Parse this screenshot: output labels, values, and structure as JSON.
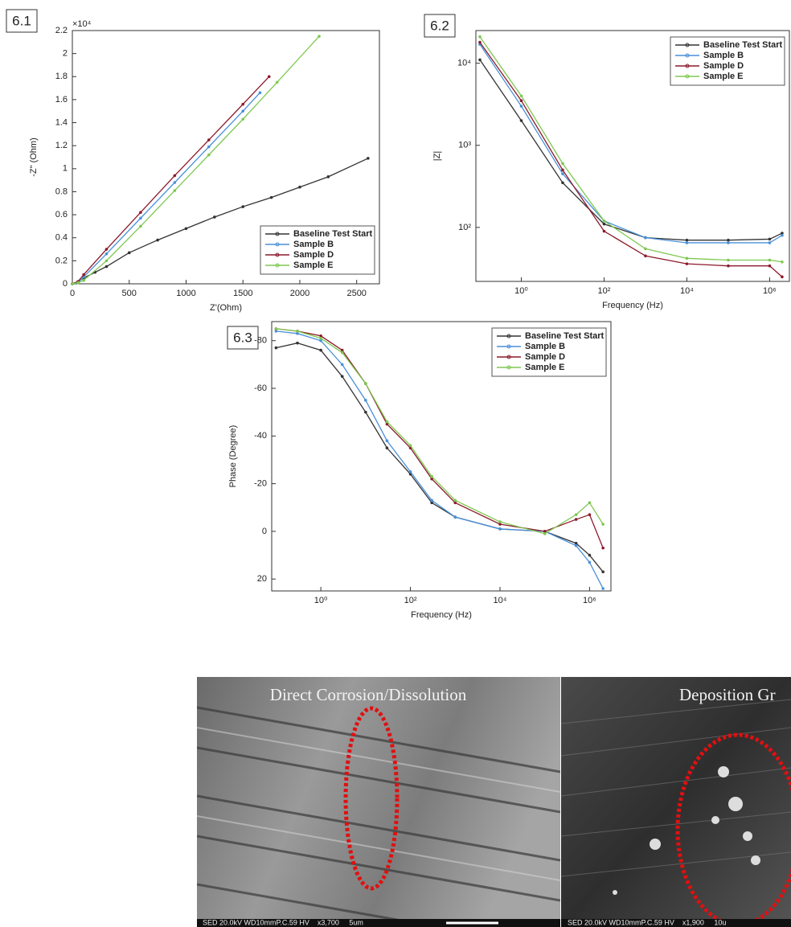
{
  "chart_data": [
    {
      "type": "line",
      "label": "6.1",
      "x_label": "Z'(Ohm)",
      "y_label": "-Z\" (Ohm)",
      "y_multiplier": "×10⁴",
      "xscale": "linear",
      "yscale": "linear",
      "xlim": [
        0,
        2700
      ],
      "ylim": [
        0,
        22000
      ],
      "xticks": [
        0,
        500,
        1000,
        1500,
        2000,
        2500
      ],
      "yticks": [
        0,
        {
          "value": 2000,
          "label": "0.2"
        },
        {
          "value": 4000,
          "label": "0.4"
        },
        {
          "value": 6000,
          "label": "0.6"
        },
        {
          "value": 8000,
          "label": "0.8"
        },
        {
          "value": 10000,
          "label": "1"
        },
        {
          "value": 12000,
          "label": "1.2"
        },
        {
          "value": 14000,
          "label": "1.4"
        },
        {
          "value": 16000,
          "label": "1.6"
        },
        {
          "value": 18000,
          "label": "1.8"
        },
        {
          "value": 20000,
          "label": "2"
        },
        {
          "value": 22000,
          "label": "2.2"
        }
      ],
      "legend": "lower right",
      "series": [
        {
          "name": "Baseline Test Start",
          "color": "#333333",
          "x": [
            0,
            50,
            100,
            200,
            300,
            500,
            750,
            1000,
            1250,
            1500,
            1750,
            2000,
            2250,
            2600
          ],
          "values": [
            0,
            200,
            500,
            1000,
            1500,
            2700,
            3800,
            4800,
            5800,
            6700,
            7500,
            8400,
            9300,
            10900
          ]
        },
        {
          "name": "Sample B",
          "color": "#4a90d9",
          "x": [
            0,
            50,
            100,
            300,
            600,
            900,
            1200,
            1500,
            1650
          ],
          "values": [
            0,
            100,
            600,
            2600,
            5700,
            8800,
            11900,
            15000,
            16600
          ]
        },
        {
          "name": "Sample D",
          "color": "#8b1a2b",
          "x": [
            0,
            50,
            100,
            300,
            600,
            900,
            1200,
            1500,
            1730
          ],
          "values": [
            0,
            200,
            800,
            3000,
            6200,
            9400,
            12500,
            15600,
            18000
          ]
        },
        {
          "name": "Sample E",
          "color": "#7ec850",
          "x": [
            0,
            50,
            100,
            300,
            600,
            900,
            1200,
            1500,
            1800,
            2170
          ],
          "values": [
            0,
            100,
            300,
            2000,
            5000,
            8100,
            11200,
            14300,
            17500,
            21500
          ]
        }
      ]
    },
    {
      "type": "line",
      "label": "6.2",
      "x_label": "Frequency (Hz)",
      "y_label": "|Z|",
      "xscale": "log",
      "yscale": "log",
      "xlim": [
        0.08,
        3000000
      ],
      "ylim": [
        22,
        25000
      ],
      "xticks": [
        {
          "value": 1,
          "label": "10⁰"
        },
        {
          "value": 100,
          "label": "10²"
        },
        {
          "value": 10000,
          "label": "10⁴"
        },
        {
          "value": 1000000,
          "label": "10⁶"
        }
      ],
      "yticks": [
        {
          "value": 100,
          "label": "10²"
        },
        {
          "value": 1000,
          "label": "10³"
        },
        {
          "value": 10000,
          "label": "10⁴"
        }
      ],
      "legend": "upper right",
      "x": [
        0.1,
        1,
        10,
        100,
        1000,
        10000,
        100000,
        1000000,
        2000000
      ],
      "series": [
        {
          "name": "Baseline Test Start",
          "color": "#333333",
          "values": [
            11000,
            2000,
            350,
            110,
            75,
            70,
            70,
            72,
            85
          ]
        },
        {
          "name": "Sample B",
          "color": "#4a90d9",
          "values": [
            17000,
            3000,
            450,
            120,
            75,
            65,
            65,
            65,
            80
          ]
        },
        {
          "name": "Sample D",
          "color": "#8b1a2b",
          "values": [
            18000,
            3500,
            500,
            90,
            45,
            36,
            34,
            34,
            25
          ]
        },
        {
          "name": "Sample E",
          "color": "#7ec850",
          "values": [
            21000,
            4000,
            600,
            120,
            55,
            42,
            40,
            40,
            38
          ]
        }
      ]
    },
    {
      "type": "line",
      "label": "6.3",
      "x_label": "Frequency (Hz)",
      "y_label": "Phase (Degree)",
      "xscale": "log",
      "yscale": "linear",
      "xlim": [
        0.08,
        3000000
      ],
      "ylim": [
        25,
        -88
      ],
      "xticks": [
        {
          "value": 1,
          "label": "10⁰"
        },
        {
          "value": 100,
          "label": "10²"
        },
        {
          "value": 10000,
          "label": "10⁴"
        },
        {
          "value": 1000000,
          "label": "10⁶"
        }
      ],
      "yticks": [
        -80,
        -60,
        -40,
        -20,
        0,
        20
      ],
      "legend": "upper right",
      "x": [
        0.1,
        0.3,
        1,
        3,
        10,
        30,
        100,
        300,
        1000,
        10000,
        100000,
        500000,
        1000000,
        2000000
      ],
      "series": [
        {
          "name": "Baseline Test Start",
          "color": "#333333",
          "values": [
            -77,
            -79,
            -76,
            -65,
            -50,
            -35,
            -24,
            -12,
            -6,
            -1,
            0,
            5,
            10,
            17
          ]
        },
        {
          "name": "Sample B",
          "color": "#4a90d9",
          "values": [
            -84,
            -83,
            -80,
            -70,
            -55,
            -38,
            -25,
            -13,
            -6,
            -1,
            0,
            6,
            13,
            24
          ]
        },
        {
          "name": "Sample D",
          "color": "#8b1a2b",
          "values": [
            -85,
            -84,
            -82,
            -76,
            -62,
            -45,
            -35,
            -22,
            -12,
            -3,
            0,
            -5,
            -7,
            7
          ]
        },
        {
          "name": "Sample E",
          "color": "#7ec850",
          "values": [
            -85,
            -84,
            -81,
            -75,
            -62,
            -46,
            -36,
            -23,
            -13,
            -4,
            1,
            -7,
            -12,
            -3
          ]
        }
      ]
    }
  ],
  "images": [
    {
      "caption": "Direct Corrosion/Dissolution",
      "info": "SED 20.0kV WD10mmP.C.59 HV    x3,700     5um"
    },
    {
      "caption": "Deposition Gr",
      "info": "SED 20.0kV WD10mmP.C.59 HV    x1,900     10u"
    }
  ]
}
